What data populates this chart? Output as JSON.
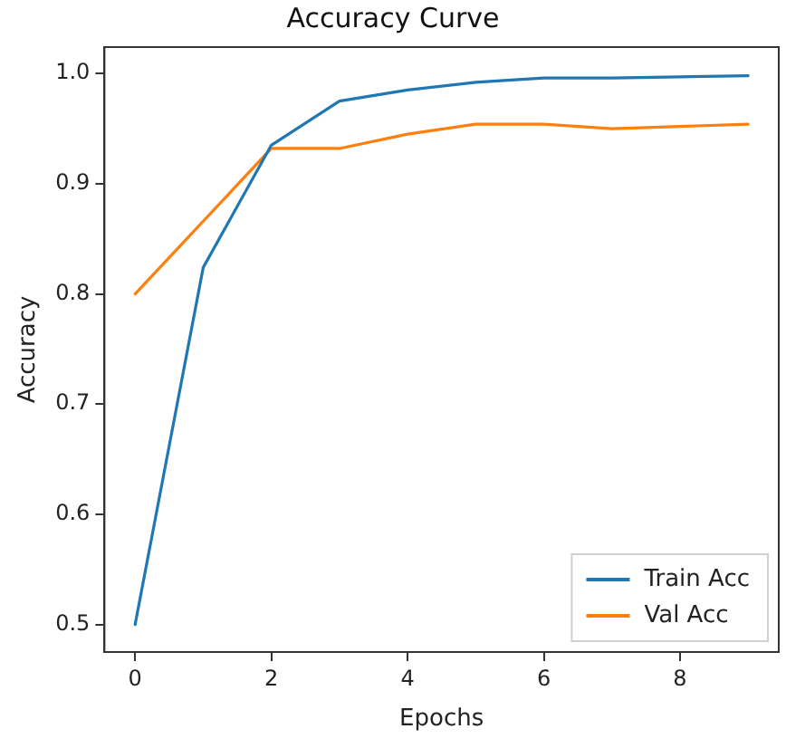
{
  "chart_data": {
    "type": "line",
    "title": "Accuracy Curve",
    "xlabel": "Epochs",
    "ylabel": "Accuracy",
    "x": [
      0,
      1,
      2,
      3,
      4,
      5,
      6,
      7,
      8,
      9
    ],
    "series": [
      {
        "name": "Train Acc",
        "color": "#1f77b4",
        "values": [
          0.5,
          0.824,
          0.935,
          0.975,
          0.985,
          0.992,
          0.996,
          0.996,
          0.997,
          0.998
        ]
      },
      {
        "name": "Val Acc",
        "color": "#ff7f0e",
        "values": [
          0.8,
          0.866,
          0.932,
          0.932,
          0.945,
          0.954,
          0.954,
          0.95,
          0.952,
          0.954
        ]
      }
    ],
    "xlim": [
      -0.45,
      9.45
    ],
    "xticks": [
      0,
      2,
      4,
      6,
      8
    ],
    "ylim": [
      0.475,
      1.024
    ],
    "yticks": [
      {
        "value": 0.5,
        "label": "0.5"
      },
      {
        "value": 0.6,
        "label": "0.6"
      },
      {
        "value": 0.7,
        "label": "0.7"
      },
      {
        "value": 0.8,
        "label": "0.8"
      },
      {
        "value": 0.9,
        "label": "0.9"
      },
      {
        "value": 1.0,
        "label": "1.0"
      }
    ],
    "legend": "bottom right",
    "grid": false,
    "marker": "none",
    "line_style": "solid"
  }
}
